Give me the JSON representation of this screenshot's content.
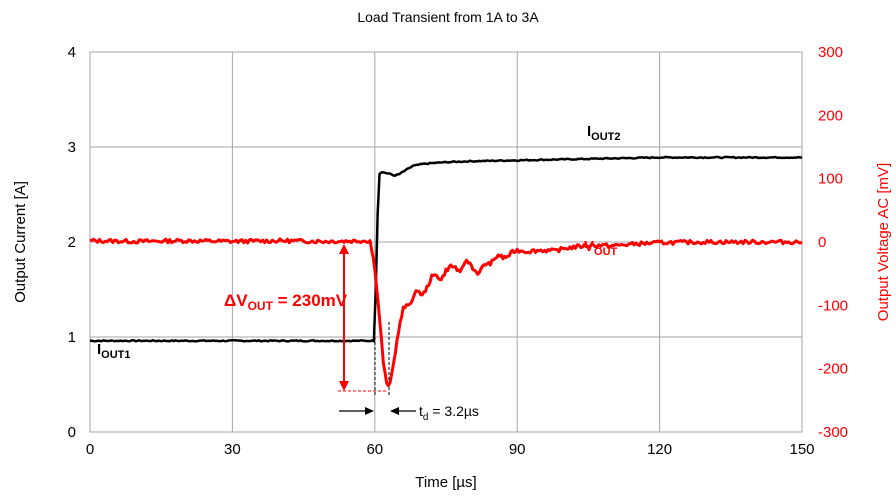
{
  "chart_data": {
    "type": "line",
    "title": "Load Transient from 1A to 3A",
    "xlabel": "Time [µs]",
    "ylabel": "Output Current [A]",
    "y2label": "Output Voltage  AC [mV]",
    "xlim": [
      0,
      150
    ],
    "ylim": [
      0,
      4
    ],
    "y2lim": [
      -300,
      300
    ],
    "xticks": [
      "0",
      "30",
      "60",
      "90",
      "120",
      "150"
    ],
    "yticks": [
      "0",
      "1",
      "2",
      "3",
      "4"
    ],
    "y2ticks": [
      "-300",
      "-200",
      "-100",
      "0",
      "100",
      "200",
      "300"
    ],
    "grid": true,
    "colors": {
      "current": "#000000",
      "voltage": "#ff0000",
      "grid": "#a6a6a6"
    },
    "series": [
      {
        "axis": "left",
        "x": [
          0,
          20,
          40,
          55,
          59.8,
          60.2,
          60.6,
          61.0,
          61.5,
          62,
          63,
          64,
          65,
          66,
          67,
          68,
          70,
          72,
          75,
          80,
          90,
          100,
          110,
          120,
          130,
          140,
          150
        ],
        "y": [
          0.96,
          0.96,
          0.96,
          0.96,
          0.96,
          1.5,
          2.3,
          2.72,
          2.74,
          2.73,
          2.72,
          2.7,
          2.71,
          2.74,
          2.77,
          2.8,
          2.82,
          2.83,
          2.84,
          2.85,
          2.86,
          2.87,
          2.88,
          2.89,
          2.89,
          2.89,
          2.89
        ]
      },
      {
        "axis": "right",
        "x": [
          0,
          10,
          20,
          30,
          40,
          50,
          59,
          60,
          61,
          61.8,
          62.5,
          63.2,
          64,
          65,
          66,
          67,
          68,
          69,
          70,
          71,
          72,
          73,
          74,
          75,
          76,
          77,
          78,
          79,
          80,
          81,
          82,
          83,
          84,
          85,
          86,
          87,
          88,
          89,
          90,
          92,
          95,
          98,
          100,
          103,
          106,
          110,
          115,
          120,
          130,
          140,
          150
        ],
        "y": [
          2,
          1,
          2,
          1,
          2,
          1,
          2,
          -40,
          -120,
          -190,
          -225,
          -225,
          -190,
          -140,
          -105,
          -100,
          -90,
          -75,
          -85,
          -72,
          -55,
          -52,
          -60,
          -45,
          -38,
          -40,
          -50,
          -30,
          -33,
          -45,
          -50,
          -35,
          -35,
          -30,
          -20,
          -25,
          -23,
          -16,
          -13,
          -15,
          -13,
          -14,
          -10,
          -7,
          -5,
          -6,
          -3,
          -1,
          0,
          0,
          0
        ]
      }
    ],
    "annotations": {
      "iout1": {
        "main": "I",
        "sub": "OUT1"
      },
      "iout2": {
        "main": "I",
        "sub": "OUT2"
      },
      "vout": {
        "main": "V",
        "sub": "OUT"
      },
      "dv": {
        "pre": "ΔV",
        "sub": "OUT",
        "post": " = 230mV"
      },
      "td": {
        "pre": "t",
        "sub": "d",
        "post": " = 3.2µs"
      }
    }
  }
}
